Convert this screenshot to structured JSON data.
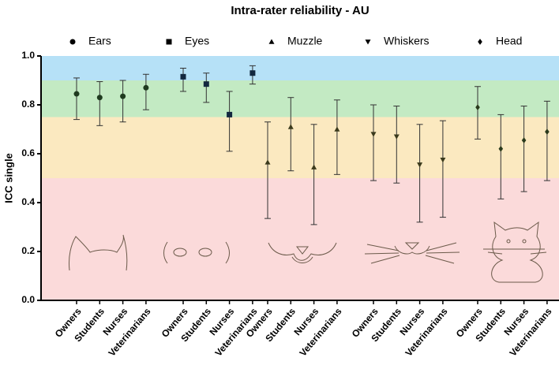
{
  "chart_data": {
    "type": "errorbar",
    "title": "Intra-rater reliability - AU",
    "y_label": "ICC single",
    "categories": [
      "Owners",
      "Students",
      "Nurses",
      "Veterinarians"
    ],
    "series": [
      {
        "name": "Ears",
        "marker": "circle",
        "color": "#1f3b1f",
        "values": [
          0.845,
          0.83,
          0.835,
          0.87
        ],
        "lower": [
          0.74,
          0.715,
          0.73,
          0.78
        ],
        "upper": [
          0.91,
          0.895,
          0.9,
          0.925
        ]
      },
      {
        "name": "Eyes",
        "marker": "square",
        "color": "#13283f",
        "values": [
          0.915,
          0.885,
          0.76,
          0.93
        ],
        "lower": [
          0.855,
          0.81,
          0.61,
          0.885
        ],
        "upper": [
          0.95,
          0.93,
          0.855,
          0.96
        ]
      },
      {
        "name": "Muzzle",
        "marker": "triangle-up",
        "color": "#3b3a1c",
        "values": [
          0.565,
          0.71,
          0.545,
          0.7
        ],
        "lower": [
          0.335,
          0.53,
          0.31,
          0.515
        ],
        "upper": [
          0.73,
          0.83,
          0.72,
          0.82
        ]
      },
      {
        "name": "Whiskers",
        "marker": "triangle-down",
        "color": "#3b3a1c",
        "values": [
          0.68,
          0.67,
          0.555,
          0.575
        ],
        "lower": [
          0.49,
          0.48,
          0.32,
          0.34
        ],
        "upper": [
          0.8,
          0.795,
          0.72,
          0.735
        ]
      },
      {
        "name": "Head",
        "marker": "diamond",
        "color": "#2a3a1c",
        "values": [
          0.79,
          0.62,
          0.655,
          0.69
        ],
        "lower": [
          0.66,
          0.415,
          0.445,
          0.49
        ],
        "upper": [
          0.875,
          0.76,
          0.795,
          0.815
        ]
      }
    ],
    "bands": [
      {
        "from": 0.9,
        "to": 1.0,
        "color": "#b6e1f7"
      },
      {
        "from": 0.75,
        "to": 0.9,
        "color": "#c3eac3"
      },
      {
        "from": 0.5,
        "to": 0.75,
        "color": "#fbe9c0"
      },
      {
        "from": 0,
        "to": 0.5,
        "color": "#fbdada"
      }
    ],
    "ylim": [
      0,
      1
    ],
    "yticks": [
      {
        "value": 0,
        "label": "0.0"
      },
      0.2,
      0.4,
      0.6,
      0.8,
      {
        "value": 1,
        "label": "1.0"
      }
    ]
  }
}
